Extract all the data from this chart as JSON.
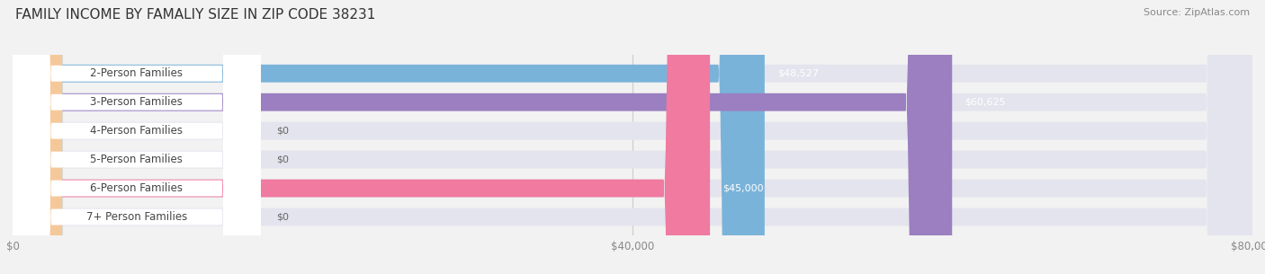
{
  "title": "FAMILY INCOME BY FAMALIY SIZE IN ZIP CODE 38231",
  "source": "Source: ZipAtlas.com",
  "categories": [
    "2-Person Families",
    "3-Person Families",
    "4-Person Families",
    "5-Person Families",
    "6-Person Families",
    "7+ Person Families"
  ],
  "values": [
    48527,
    60625,
    0,
    0,
    45000,
    0
  ],
  "bar_colors": [
    "#7ab3d9",
    "#9b7fc0",
    "#5ec8b8",
    "#a8a8e0",
    "#f07aa0",
    "#f5c89a"
  ],
  "value_labels": [
    "$48,527",
    "$60,625",
    "$0",
    "$0",
    "$45,000",
    "$0"
  ],
  "xlim": [
    0,
    80000
  ],
  "xticks": [
    0,
    40000,
    80000
  ],
  "xticklabels": [
    "$0",
    "$40,000",
    "$80,000"
  ],
  "background_color": "#f2f2f2",
  "bar_bg_color": "#e4e4ee",
  "title_fontsize": 11,
  "source_fontsize": 8,
  "label_fontsize": 8.5,
  "value_fontsize": 8
}
